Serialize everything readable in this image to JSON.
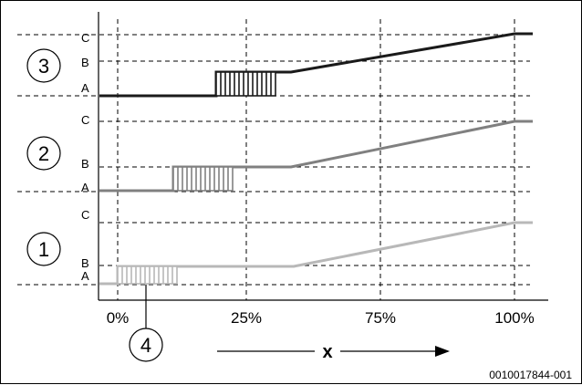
{
  "tick_labels": [
    "0%",
    "25%",
    "75%",
    "100%"
  ],
  "x_axis_label": "x",
  "figure_code": "0010017844-001",
  "callouts": [
    "1",
    "2",
    "3",
    "4"
  ],
  "level_labels": [
    "A",
    "B",
    "C"
  ],
  "colors": {
    "curve_3": "#1a1a1a",
    "curve_2": "#808080",
    "curve_1": "#b8b8b8",
    "grid": "#000000"
  },
  "chart_data": {
    "type": "line",
    "x_ticks": [
      "0%",
      "25%",
      "75%",
      "100%"
    ],
    "series": [
      {
        "callout": "1",
        "levels": [
          "A",
          "B",
          "C"
        ],
        "hatched_block_range": [
          "0%",
          "~15%"
        ]
      },
      {
        "callout": "2",
        "levels": [
          "A",
          "B",
          "C"
        ],
        "hatched_block_range": [
          "~15%",
          "~22%"
        ]
      },
      {
        "callout": "3",
        "levels": [
          "A",
          "B",
          "C"
        ],
        "hatched_block_range": [
          "~25%",
          "~30%"
        ]
      }
    ],
    "xlabel": "x"
  }
}
